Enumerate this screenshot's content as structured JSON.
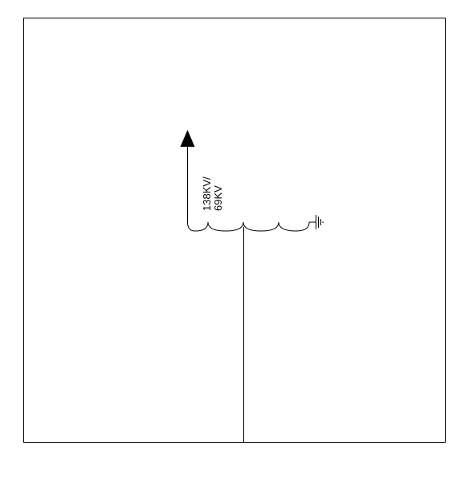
{
  "diagram": {
    "transformer_rating_line1": "138KV/",
    "transformer_rating_line2": "69KV",
    "colors": {
      "line": "#000000",
      "background": "#ffffff"
    },
    "icons": {
      "arrow": "arrowhead-up-icon",
      "ground": "ground-symbol-icon",
      "coil": "transformer-winding-icon"
    }
  }
}
